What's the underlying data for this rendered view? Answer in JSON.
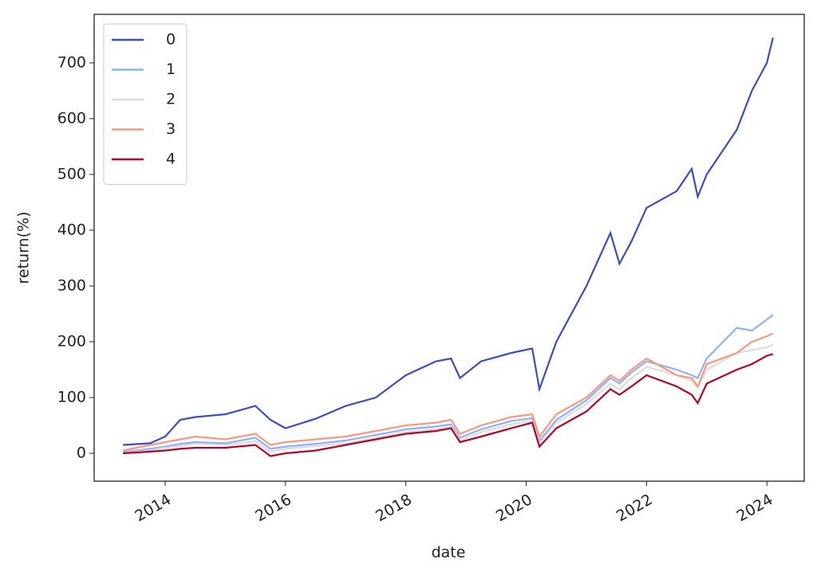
{
  "chart_data": {
    "type": "line",
    "x_label": "date",
    "y_label": "return(%)",
    "x": [
      2013.3,
      2013.75,
      2014.0,
      2014.25,
      2014.5,
      2015.0,
      2015.5,
      2015.75,
      2016.0,
      2016.5,
      2017.0,
      2017.5,
      2018.0,
      2018.5,
      2018.75,
      2018.9,
      2019.25,
      2019.75,
      2020.1,
      2020.22,
      2020.5,
      2021.0,
      2021.4,
      2021.55,
      2021.75,
      2022.0,
      2022.5,
      2022.75,
      2022.85,
      2023.0,
      2023.5,
      2023.75,
      2024.0,
      2024.1
    ],
    "series": [
      {
        "name": "0",
        "color": "#3b4cc0",
        "values": [
          15,
          18,
          30,
          60,
          65,
          70,
          85,
          60,
          45,
          62,
          85,
          100,
          140,
          165,
          170,
          135,
          165,
          180,
          188,
          115,
          200,
          300,
          395,
          340,
          380,
          440,
          470,
          510,
          460,
          500,
          580,
          650,
          700,
          745
        ]
      },
      {
        "name": "1",
        "color": "#8db0fe",
        "values": [
          2,
          8,
          12,
          17,
          20,
          18,
          28,
          8,
          12,
          17,
          23,
          33,
          43,
          48,
          52,
          28,
          43,
          58,
          63,
          22,
          60,
          95,
          135,
          125,
          145,
          165,
          150,
          140,
          135,
          170,
          225,
          220,
          240,
          248
        ]
      },
      {
        "name": "2",
        "color": "#dddcdc",
        "values": [
          0,
          5,
          10,
          13,
          17,
          15,
          22,
          3,
          8,
          13,
          18,
          28,
          38,
          43,
          48,
          23,
          38,
          52,
          58,
          18,
          55,
          88,
          125,
          115,
          135,
          155,
          140,
          130,
          118,
          150,
          180,
          185,
          190,
          195
        ]
      },
      {
        "name": "3",
        "color": "#f49a7b",
        "values": [
          5,
          15,
          20,
          25,
          30,
          25,
          35,
          15,
          20,
          25,
          30,
          40,
          50,
          55,
          60,
          35,
          50,
          65,
          70,
          30,
          70,
          100,
          140,
          130,
          150,
          170,
          140,
          135,
          120,
          160,
          180,
          200,
          210,
          215
        ]
      },
      {
        "name": "4",
        "color": "#b40426",
        "values": [
          0,
          3,
          5,
          8,
          10,
          10,
          15,
          -5,
          0,
          5,
          15,
          25,
          35,
          40,
          45,
          20,
          30,
          45,
          55,
          12,
          45,
          75,
          115,
          105,
          120,
          140,
          120,
          105,
          90,
          125,
          150,
          160,
          175,
          178
        ]
      }
    ],
    "xlim": [
      2012.82,
      2024.62
    ],
    "xticks": [
      2014,
      2016,
      2018,
      2020,
      2022,
      2024
    ],
    "ylim": [
      -50,
      787
    ],
    "yticks": [
      0,
      100,
      200,
      300,
      400,
      500,
      600,
      700
    ],
    "legend": "upper left"
  }
}
